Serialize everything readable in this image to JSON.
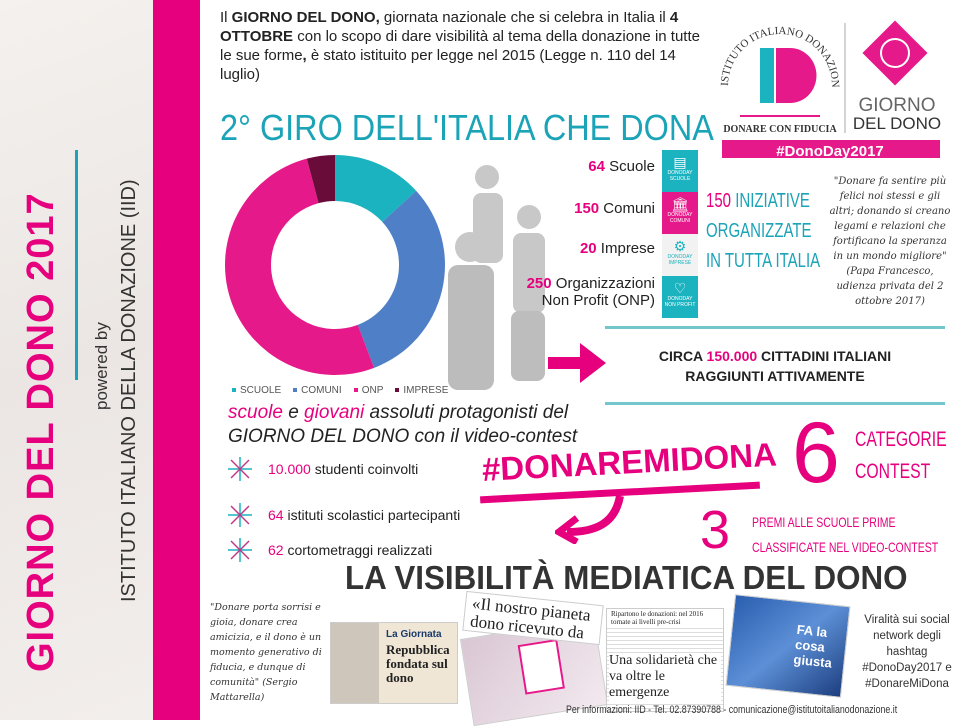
{
  "sidebar": {
    "title": "GIORNO DEL DONO 2017",
    "powered": "powered by",
    "institute": "ISTITUTO ITALIANO DELLA DONAZIONE (IID)"
  },
  "intro": {
    "p1": "Il ",
    "b1": "GIORNO DEL DONO,",
    "p2": " giornata nazionale che si celebra in Italia il ",
    "b2": "4 OTTOBRE",
    "p3": " con lo scopo di dare visibilità al tema della donazione in tutte le sue forme",
    "b3": ",",
    "p4": " è stato istituito per legge nel 2015 (Legge n. 110 del 14 luglio)"
  },
  "heading": "2° GIRO DELL'ITALIA CHE DONA",
  "logo": {
    "arc": "ISTITUTO ITALIANO DONAZIONE",
    "mono": "ID",
    "tagline": "DONARE CON FIDUCIA",
    "giorno": "GIORNO",
    "deldono": "DEL DONO",
    "hashtag": "#DonoDay2017"
  },
  "chart_data": {
    "type": "pie",
    "donut": true,
    "categories": [
      "SCUOLE",
      "COMUNI",
      "ONP",
      "IMPRESE"
    ],
    "values": [
      64,
      150,
      250,
      20
    ],
    "colors": [
      "#1cb3c0",
      "#4f7fc6",
      "#e6198a",
      "#6a0c3a"
    ],
    "legend": "bottom"
  },
  "stats": [
    {
      "n": "64",
      "label": " Scuole",
      "tile": "SCUOLE"
    },
    {
      "n": "150",
      "label": " Comuni",
      "tile": "COMUNI"
    },
    {
      "n": "20",
      "label": " Imprese",
      "tile": "IMPRESE"
    },
    {
      "n": "250",
      "label": " Organizzazioni",
      "label2": "Non Profit (ONP)",
      "tile": "NON PROFIT"
    }
  ],
  "tile_brand": "DONODAY",
  "iniziative": {
    "n": "150",
    "l1": " INIZIATIVE",
    "l2": "ORGANIZZATE",
    "l3": "IN TUTTA ITALIA"
  },
  "quote1": "\"Donare fa sentire più felici noi stessi e gli altri; donando si creano legami e relazioni che fortificano la speranza in un mondo migliore\" (Papa Francesco, udienza privata del 2 ottobre 2017)",
  "circa": {
    "a": "CIRCA ",
    "n": "150.000",
    "b": " CITTADINI ITALIANI",
    "c": "RAGGIUNTI ATTIVAMENTE"
  },
  "scuole": {
    "s": "scuole",
    "e": " e ",
    "g": "giovani",
    "rest": " assoluti protagonisti del",
    "l2": "GIORNO DEL DONO con il video-contest"
  },
  "bullets": [
    {
      "n": "10.000",
      "t": " studenti coinvolti"
    },
    {
      "n": "64",
      "t": " istituti scolastici partecipanti"
    },
    {
      "n": "62",
      "t": " cortometraggi realizzati"
    }
  ],
  "hashtag": "#DONAREMIDONA",
  "contest": {
    "n": "6",
    "l1": "CATEGORIE",
    "l2": "CONTEST",
    "n2": "3",
    "p1": "PREMI ALLE SCUOLE PRIME",
    "p2": "CLASSIFICATE NEL VIDEO-CONTEST"
  },
  "visibility": "LA VISIBILITÀ MEDIATICA DEL DONO",
  "quote2": "\"Donare porta sorrisi e gioia, donare crea amicizia, e il dono è un momento generativo di fiducia, e dunque di comunità\" (Sergio Mattarella)",
  "clips": {
    "c1a": "La Giornata",
    "c1b": "Repubblica fondata sul dono",
    "c2": "«Il nostro pianeta dono ricevuto da co...",
    "c3a": "Ripartono le donazioni: nel 2016 tornate ai livelli pre-crisi",
    "c3b": "Una solidarietà che va oltre le emergenze",
    "c4": "FA la cosa giusta"
  },
  "viral": "Viralità sui social network degli hashtag #DonoDay2017 e #DonareMiDona",
  "info": "Per informazioni: IID - Tel. 02.87390788 - comunicazione@istitutoitalianodonazione.it"
}
